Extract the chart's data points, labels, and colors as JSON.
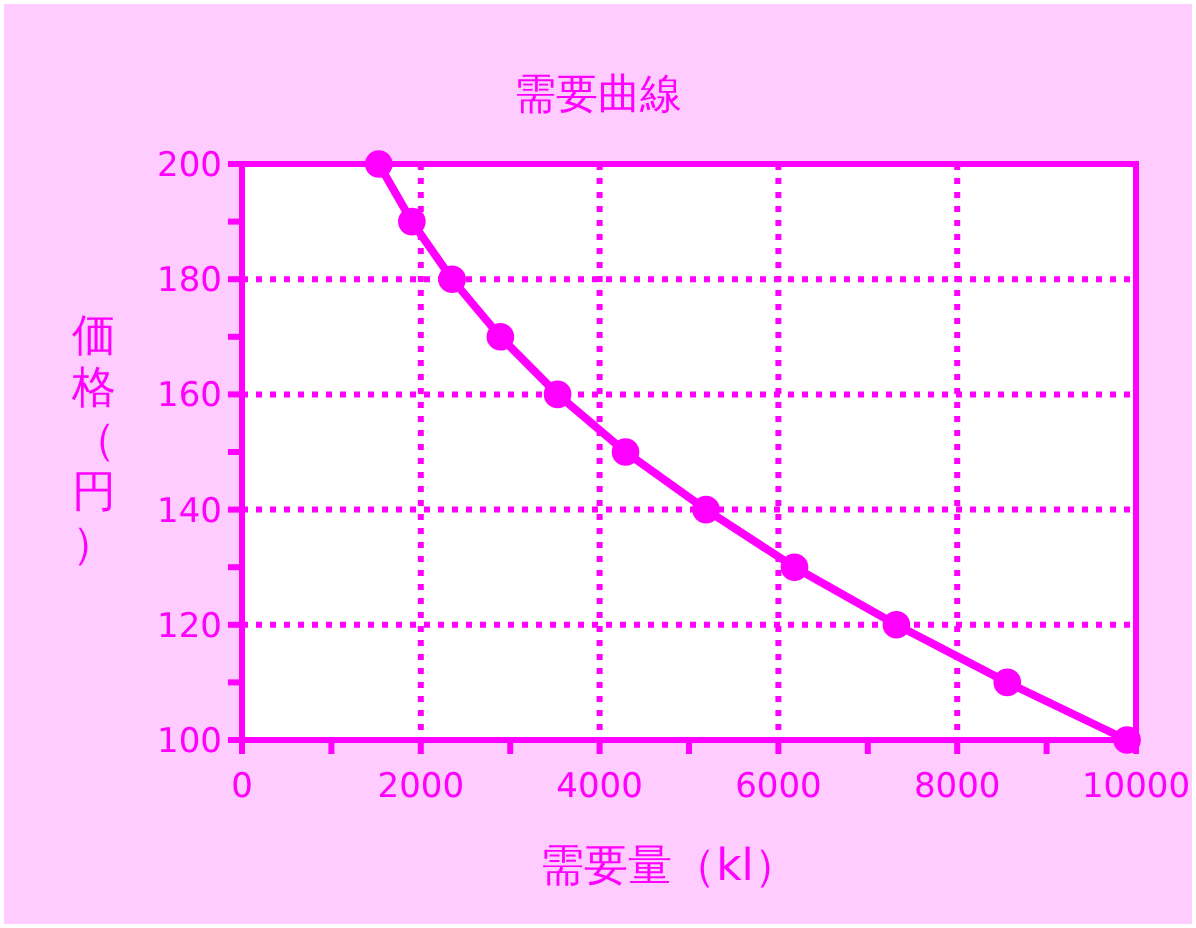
{
  "chart_data": {
    "type": "line",
    "title": "需要曲線",
    "xlabel": "需要量（kl）",
    "ylabel": "価格（円）",
    "x": [
      1530,
      1900,
      2350,
      2890,
      3530,
      4290,
      5190,
      6180,
      7320,
      8560,
      9900
    ],
    "series": [
      {
        "color": "#ff00ff",
        "values": [
          200,
          190,
          180,
          170,
          160,
          150,
          140,
          130,
          120,
          110,
          100
        ]
      }
    ],
    "xlim": [
      0,
      10000
    ],
    "ylim": [
      100,
      200
    ],
    "xticks": [
      0,
      {
        "value": 1000,
        "label": null
      },
      2000,
      {
        "value": 3000,
        "label": null
      },
      4000,
      {
        "value": 5000,
        "label": null
      },
      6000,
      {
        "value": 7000,
        "label": null
      },
      8000,
      {
        "value": 9000,
        "label": null
      },
      10000
    ],
    "yticks": [
      100,
      {
        "value": 110,
        "label": null
      },
      120,
      {
        "value": 130,
        "label": null
      },
      140,
      {
        "value": 150,
        "label": null
      },
      160,
      {
        "value": 170,
        "label": null
      },
      180,
      {
        "value": 190,
        "label": null
      },
      200
    ],
    "grid": true,
    "marker": "circle",
    "line_style": "solid"
  }
}
